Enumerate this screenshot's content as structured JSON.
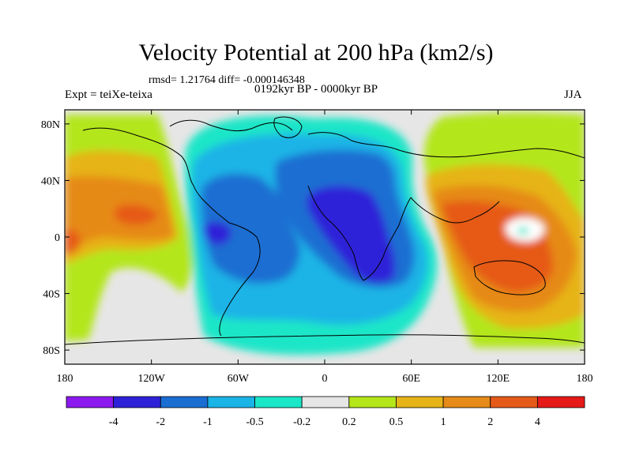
{
  "title": "Velocity Potential at 200 hPa (km2/s)",
  "stats_line": "rmsd= 1.21764 diff= -0.000146348",
  "experiment": "Expt = teiXe-teixa",
  "period": "0192kyr BP - 0000kyr BP",
  "season": "JJA",
  "map": {
    "lon_range": [
      -180,
      180
    ],
    "lat_range": [
      -90,
      90
    ],
    "lon_ticks": [
      {
        "value": -180,
        "label": "180"
      },
      {
        "value": -120,
        "label": "120W"
      },
      {
        "value": -60,
        "label": "60W"
      },
      {
        "value": 0,
        "label": "0"
      },
      {
        "value": 60,
        "label": "60E"
      },
      {
        "value": 120,
        "label": "120E"
      },
      {
        "value": 180,
        "label": "180"
      }
    ],
    "lat_ticks": [
      {
        "value": 80,
        "label": "80N"
      },
      {
        "value": 40,
        "label": "40N"
      },
      {
        "value": 0,
        "label": "0"
      },
      {
        "value": -40,
        "label": "40S"
      },
      {
        "value": -80,
        "label": "80S"
      }
    ],
    "field_background_color": "#e6e6e6",
    "coastline_color": "#000000"
  },
  "colorbar": {
    "colors": [
      "#8c1aef",
      "#2e22d8",
      "#1a6ed2",
      "#1ab4e6",
      "#1ae6c8",
      "#e6e6e6",
      "#b4e61a",
      "#e6b419",
      "#e68a19",
      "#e65a19",
      "#e61a19"
    ],
    "labels": [
      "-4",
      "-2",
      "-1",
      "-0.5",
      "-0.2",
      "0.2",
      "0.5",
      "1",
      "2",
      "4"
    ]
  },
  "field_centers": [
    {
      "name": "divergent-low-africa",
      "lon": 25,
      "lat": 5,
      "level": "-2"
    },
    {
      "name": "divergent-low-south-america",
      "lon": -78,
      "lat": -2,
      "level": "-2"
    },
    {
      "name": "convergent-high-maritime",
      "lon": 130,
      "lat": -15,
      "level": "2"
    },
    {
      "name": "convergent-high-pacific",
      "lon": -165,
      "lat": 10,
      "level": "1"
    }
  ]
}
